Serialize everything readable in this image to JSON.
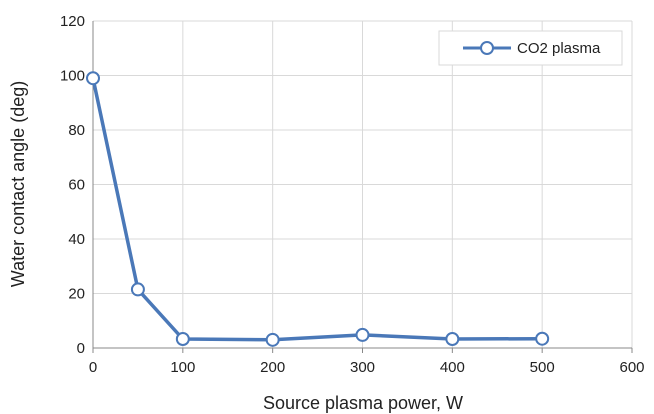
{
  "chart_data": {
    "type": "line",
    "title": "",
    "xlabel": "Source plasma power, W",
    "ylabel": "Water contact angle (deg)",
    "xlim": [
      0,
      600
    ],
    "ylim": [
      0,
      120
    ],
    "xticks": [
      0,
      100,
      200,
      300,
      400,
      500,
      600
    ],
    "yticks": [
      0,
      20,
      40,
      60,
      80,
      100,
      120
    ],
    "x_tick_labels": [
      "0",
      "100",
      "200",
      "300",
      "400",
      "500",
      "600"
    ],
    "y_tick_labels": [
      "0",
      "20",
      "40",
      "60",
      "80",
      "100",
      "120"
    ],
    "grid": true,
    "legend_position": "top-right",
    "series": [
      {
        "name": "CO2 plasma",
        "color": "#4a78b8",
        "marker": "open-circle",
        "x": [
          0,
          50,
          100,
          200,
          300,
          400,
          500
        ],
        "y": [
          99,
          21.5,
          3.3,
          3,
          4.8,
          3.3,
          3.4
        ]
      }
    ]
  }
}
